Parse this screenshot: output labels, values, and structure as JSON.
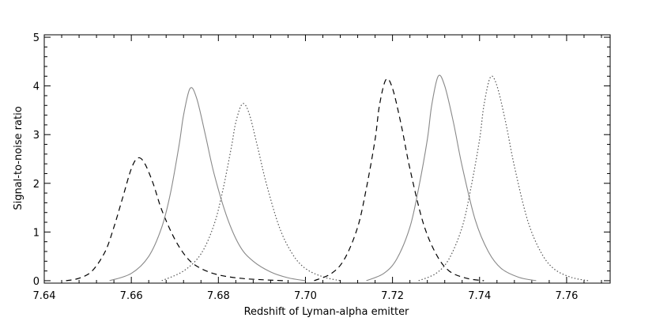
{
  "chart_data": {
    "type": "line",
    "title": "",
    "xlabel": "Redshift of Lyman-alpha emitter",
    "ylabel": "Signal-to-noise ratio",
    "xlim": [
      7.64,
      7.77
    ],
    "ylim": [
      -0.05,
      5.05
    ],
    "x_ticks": [
      7.64,
      7.66,
      7.68,
      7.7,
      7.72,
      7.74,
      7.76
    ],
    "x_tick_labels": [
      "7.64",
      "7.66",
      "7.68",
      "7.70",
      "7.72",
      "7.74",
      "7.76"
    ],
    "y_ticks": [
      0,
      1,
      2,
      3,
      4,
      5
    ],
    "y_tick_labels": [
      "0",
      "1",
      "2",
      "3",
      "4",
      "5"
    ],
    "grid": false,
    "legend": "none",
    "series": [
      {
        "style": "dashed",
        "color": "#000000",
        "x": [
          7.645,
          7.648,
          7.651,
          7.654,
          7.656,
          7.658,
          7.66,
          7.6615,
          7.663,
          7.665,
          7.667,
          7.67,
          7.673,
          7.676,
          7.68,
          7.685,
          7.69,
          7.695
        ],
        "y": [
          0.0,
          0.05,
          0.2,
          0.6,
          1.1,
          1.7,
          2.3,
          2.52,
          2.42,
          2.0,
          1.45,
          0.85,
          0.45,
          0.25,
          0.12,
          0.05,
          0.02,
          0.0
        ]
      },
      {
        "style": "solid",
        "color": "#888888",
        "x": [
          7.655,
          7.66,
          7.664,
          7.667,
          7.669,
          7.671,
          7.672,
          7.6735,
          7.675,
          7.677,
          7.679,
          7.682,
          7.685,
          7.688,
          7.692,
          7.696,
          7.7
        ],
        "y": [
          0.0,
          0.15,
          0.5,
          1.1,
          1.8,
          2.8,
          3.4,
          3.95,
          3.75,
          3.0,
          2.2,
          1.3,
          0.7,
          0.4,
          0.18,
          0.06,
          0.0
        ]
      },
      {
        "style": "dotted",
        "color": "#555555",
        "x": [
          7.667,
          7.672,
          7.676,
          7.679,
          7.681,
          7.683,
          7.684,
          7.6855,
          7.687,
          7.689,
          7.691,
          7.694,
          7.697,
          7.7,
          7.704,
          7.708
        ],
        "y": [
          0.0,
          0.2,
          0.55,
          1.15,
          1.85,
          2.75,
          3.25,
          3.63,
          3.45,
          2.75,
          2.0,
          1.1,
          0.55,
          0.25,
          0.08,
          0.0
        ]
      },
      {
        "style": "dashed",
        "color": "#000000",
        "x": [
          7.702,
          7.706,
          7.709,
          7.712,
          7.714,
          7.716,
          7.717,
          7.7185,
          7.72,
          7.722,
          7.724,
          7.727,
          7.73,
          7.733,
          7.737,
          7.741
        ],
        "y": [
          0.0,
          0.15,
          0.45,
          1.1,
          1.9,
          2.9,
          3.6,
          4.13,
          3.95,
          3.2,
          2.3,
          1.2,
          0.55,
          0.2,
          0.05,
          0.0
        ]
      },
      {
        "style": "solid",
        "color": "#888888",
        "x": [
          7.714,
          7.718,
          7.721,
          7.724,
          7.726,
          7.728,
          7.729,
          7.7305,
          7.732,
          7.734,
          7.736,
          7.739,
          7.742,
          7.745,
          7.749,
          7.753
        ],
        "y": [
          0.0,
          0.15,
          0.45,
          1.1,
          1.9,
          2.9,
          3.6,
          4.2,
          4.0,
          3.25,
          2.35,
          1.25,
          0.6,
          0.25,
          0.07,
          0.0
        ]
      },
      {
        "style": "dotted",
        "color": "#555555",
        "x": [
          7.726,
          7.73,
          7.733,
          7.736,
          7.738,
          7.74,
          7.741,
          7.7425,
          7.744,
          7.746,
          7.748,
          7.751,
          7.754,
          7.757,
          7.761,
          7.765
        ],
        "y": [
          0.0,
          0.15,
          0.45,
          1.1,
          1.9,
          2.9,
          3.6,
          4.18,
          4.0,
          3.25,
          2.35,
          1.25,
          0.6,
          0.25,
          0.07,
          0.0
        ]
      }
    ]
  }
}
